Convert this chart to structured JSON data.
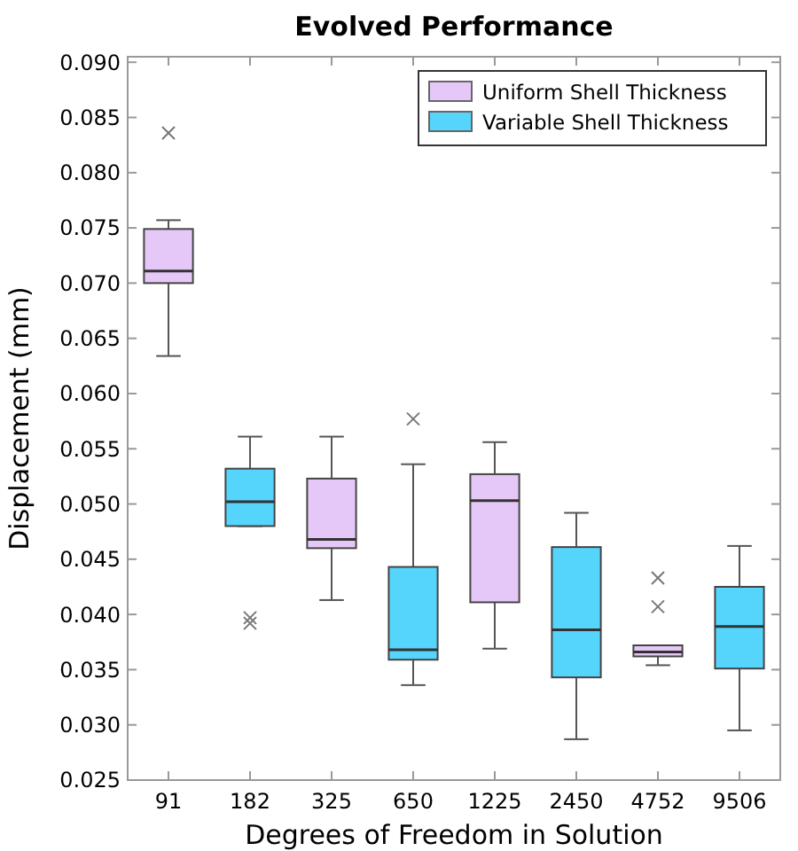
{
  "chart_data": {
    "type": "box",
    "title": "Evolved Performance",
    "xlabel": "Degrees of Freedom in Solution",
    "ylabel": "Displacement (mm)",
    "categories": [
      "91",
      "182",
      "325",
      "650",
      "1225",
      "2450",
      "4752",
      "9506"
    ],
    "series": [
      {
        "name": "Uniform Shell Thickness",
        "color": "#e6c8f8",
        "boxes": [
          {
            "low": 0.0634,
            "q1": 0.07,
            "median": 0.0711,
            "q3": 0.0749,
            "high": 0.0757,
            "outliers": [
              0.0836
            ]
          },
          null,
          {
            "low": 0.0413,
            "q1": 0.046,
            "median": 0.0468,
            "q3": 0.0523,
            "high": 0.0561
          },
          null,
          {
            "low": 0.0369,
            "q1": 0.0411,
            "median": 0.0503,
            "q3": 0.0527,
            "high": 0.0556
          },
          null,
          {
            "low": 0.0354,
            "q1": 0.0362,
            "median": 0.0366,
            "q3": 0.0372,
            "high": 0.0372,
            "outliers": [
              0.0407,
              0.0433
            ]
          },
          null
        ]
      },
      {
        "name": "Variable Shell Thickness",
        "color": "#55d5fb",
        "boxes": [
          null,
          {
            "low": 0.048,
            "q1": 0.048,
            "median": 0.0502,
            "q3": 0.0532,
            "high": 0.0561,
            "outliers": [
              0.0392,
              0.0397
            ]
          },
          null,
          {
            "low": 0.0336,
            "q1": 0.0359,
            "median": 0.0368,
            "q3": 0.0443,
            "high": 0.0536,
            "outliers": [
              0.0577
            ]
          },
          null,
          {
            "low": 0.0287,
            "q1": 0.0343,
            "median": 0.0386,
            "q3": 0.0461,
            "high": 0.0492
          },
          null,
          {
            "low": 0.0295,
            "q1": 0.0351,
            "median": 0.0389,
            "q3": 0.0425,
            "high": 0.0462
          }
        ]
      }
    ],
    "ylim": [
      0.025,
      0.0905
    ],
    "yticks": [
      {
        "value": 0.025,
        "label": "0.025"
      },
      {
        "value": 0.03,
        "label": "0.030"
      },
      {
        "value": 0.035,
        "label": "0.035"
      },
      {
        "value": 0.04,
        "label": "0.040"
      },
      {
        "value": 0.045,
        "label": "0.045"
      },
      {
        "value": 0.05,
        "label": "0.050"
      },
      {
        "value": 0.055,
        "label": "0.055"
      },
      {
        "value": 0.06,
        "label": "0.060"
      },
      {
        "value": 0.065,
        "label": "0.065"
      },
      {
        "value": 0.07,
        "label": "0.070"
      },
      {
        "value": 0.075,
        "label": "0.075"
      },
      {
        "value": 0.08,
        "label": "0.080"
      },
      {
        "value": 0.085,
        "label": "0.085"
      },
      {
        "value": 0.09,
        "label": "0.090"
      }
    ],
    "legend": "top right",
    "grid": false,
    "marker": "cross"
  }
}
